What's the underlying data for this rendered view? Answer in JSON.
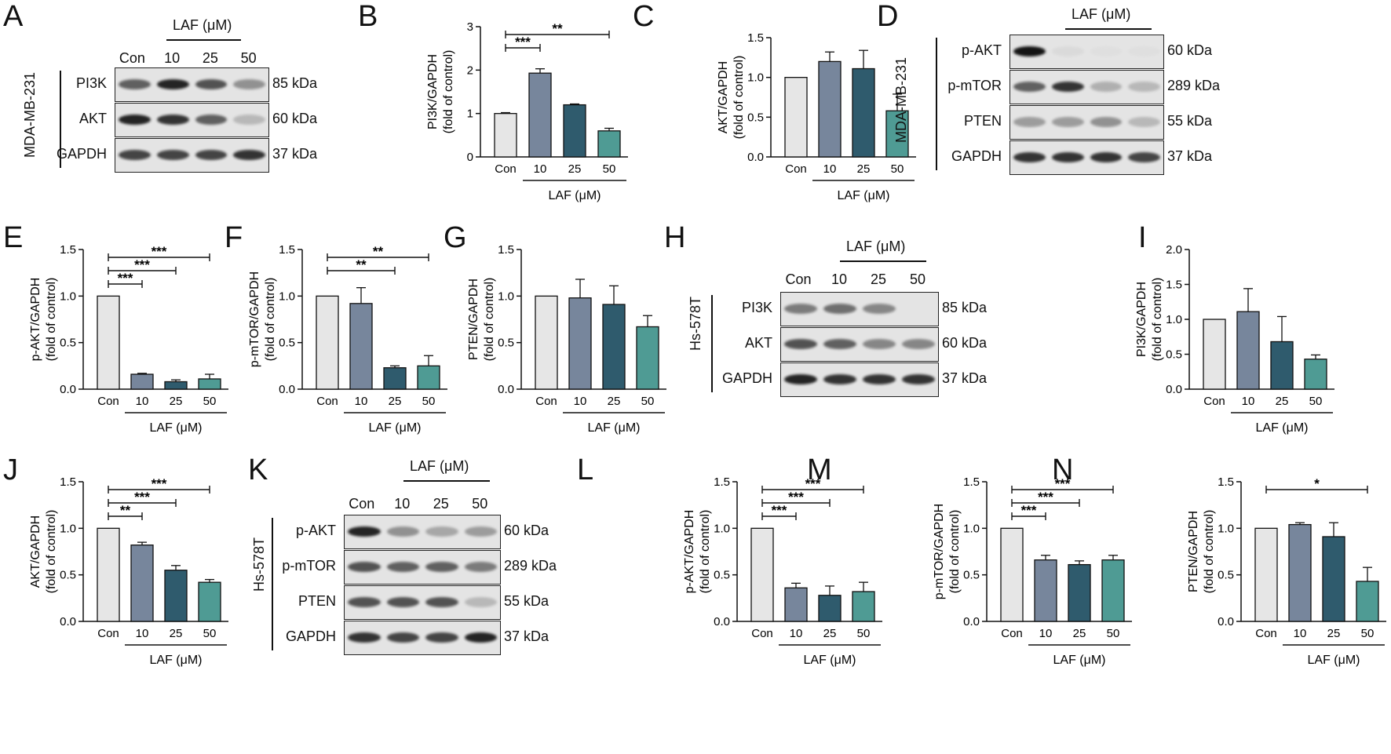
{
  "panel_letters": {
    "A": "A",
    "B": "B",
    "C": "C",
    "D": "D",
    "E": "E",
    "F": "F",
    "G": "G",
    "H": "H",
    "I": "I",
    "J": "J",
    "K": "K",
    "L": "L",
    "M": "M",
    "N": "N"
  },
  "colors": {
    "Con": "#e6e6e6",
    "10": "#77869c",
    "25": "#2f5b6d",
    "50": "#4f9b94"
  },
  "chart_data": [
    {
      "panel": "B",
      "type": "bar",
      "categories": [
        "Con",
        "10",
        "25",
        "50"
      ],
      "values": [
        1.0,
        1.93,
        1.2,
        0.6
      ],
      "errors": [
        0.02,
        0.1,
        0.02,
        0.06
      ],
      "ylabel": "PI3K/GAPDH",
      "ylabel2": "(fold of control)",
      "xlabel": "LAF (μM)",
      "ylim": [
        0,
        3
      ],
      "yticks": [
        "0",
        "1",
        "2",
        "3"
      ],
      "sig": [
        {
          "to": 1,
          "label": "***"
        },
        {
          "to": 3,
          "label": "**"
        }
      ]
    },
    {
      "panel": "C",
      "type": "bar",
      "categories": [
        "Con",
        "10",
        "25",
        "50"
      ],
      "values": [
        1.0,
        1.2,
        1.11,
        0.58
      ],
      "errors": [
        0.0,
        0.12,
        0.23,
        0.21
      ],
      "ylabel": "AKT/GAPDH",
      "ylabel2": "(fold of control)",
      "xlabel": "LAF (μM)",
      "ylim": [
        0,
        1.5
      ],
      "yticks": [
        "0.0",
        "0.5",
        "1.0",
        "1.5"
      ],
      "sig": []
    },
    {
      "panel": "E",
      "type": "bar",
      "categories": [
        "Con",
        "10",
        "25",
        "50"
      ],
      "values": [
        1.0,
        0.16,
        0.08,
        0.11
      ],
      "errors": [
        0.0,
        0.01,
        0.02,
        0.05
      ],
      "ylabel": "p-AKT/GAPDH",
      "ylabel2": "(fold of control)",
      "xlabel": "LAF (μM)",
      "ylim": [
        0,
        1.5
      ],
      "yticks": [
        "0.0",
        "0.5",
        "1.0",
        "1.5"
      ],
      "sig": [
        {
          "to": 1,
          "label": "***"
        },
        {
          "to": 2,
          "label": "***"
        },
        {
          "to": 3,
          "label": "***"
        }
      ]
    },
    {
      "panel": "F",
      "type": "bar",
      "categories": [
        "Con",
        "10",
        "25",
        "50"
      ],
      "values": [
        1.0,
        0.92,
        0.23,
        0.25
      ],
      "errors": [
        0.0,
        0.17,
        0.02,
        0.11
      ],
      "ylabel": "p-mTOR/GAPDH",
      "ylabel2": "(fold of control)",
      "xlabel": "LAF (μM)",
      "ylim": [
        0,
        1.5
      ],
      "yticks": [
        "0.0",
        "0.5",
        "1.0",
        "1.5"
      ],
      "sig": [
        {
          "to": 2,
          "label": "**"
        },
        {
          "to": 3,
          "label": "**"
        }
      ]
    },
    {
      "panel": "G",
      "type": "bar",
      "categories": [
        "Con",
        "10",
        "25",
        "50"
      ],
      "values": [
        1.0,
        0.98,
        0.91,
        0.67
      ],
      "errors": [
        0.0,
        0.2,
        0.2,
        0.12
      ],
      "ylabel": "PTEN/GAPDH",
      "ylabel2": "(fold of control)",
      "xlabel": "LAF (μM)",
      "ylim": [
        0,
        1.5
      ],
      "yticks": [
        "0.0",
        "0.5",
        "1.0",
        "1.5"
      ],
      "sig": []
    },
    {
      "panel": "I",
      "type": "bar",
      "categories": [
        "Con",
        "10",
        "25",
        "50"
      ],
      "values": [
        1.0,
        1.11,
        0.68,
        0.43
      ],
      "errors": [
        0.0,
        0.33,
        0.36,
        0.06
      ],
      "ylabel": "PI3K/GAPDH",
      "ylabel2": "(fold of control)",
      "xlabel": "LAF (μM)",
      "ylim": [
        0,
        2
      ],
      "yticks": [
        "0.0",
        "0.5",
        "1.0",
        "1.5",
        "2.0"
      ],
      "sig": []
    },
    {
      "panel": "J",
      "type": "bar",
      "categories": [
        "Con",
        "10",
        "25",
        "50"
      ],
      "values": [
        1.0,
        0.82,
        0.55,
        0.42
      ],
      "errors": [
        0.0,
        0.03,
        0.05,
        0.03
      ],
      "ylabel": "AKT/GAPDH",
      "ylabel2": "(fold of control)",
      "xlabel": "LAF (μM)",
      "ylim": [
        0,
        1.5
      ],
      "yticks": [
        "0.0",
        "0.5",
        "1.0",
        "1.5"
      ],
      "sig": [
        {
          "to": 1,
          "label": "**"
        },
        {
          "to": 2,
          "label": "***"
        },
        {
          "to": 3,
          "label": "***"
        }
      ]
    },
    {
      "panel": "L",
      "type": "bar",
      "categories": [
        "Con",
        "10",
        "25",
        "50"
      ],
      "values": [
        1.0,
        0.36,
        0.28,
        0.32
      ],
      "errors": [
        0.0,
        0.05,
        0.1,
        0.1
      ],
      "ylabel": "p-AKT/GAPDH",
      "ylabel2": "(fold of control)",
      "xlabel": "LAF (μM)",
      "ylim": [
        0,
        1.5
      ],
      "yticks": [
        "0.0",
        "0.5",
        "1.0",
        "1.5"
      ],
      "sig": [
        {
          "to": 1,
          "label": "***"
        },
        {
          "to": 2,
          "label": "***"
        },
        {
          "to": 3,
          "label": "***"
        }
      ]
    },
    {
      "panel": "M",
      "type": "bar",
      "categories": [
        "Con",
        "10",
        "25",
        "50"
      ],
      "values": [
        1.0,
        0.66,
        0.61,
        0.66
      ],
      "errors": [
        0.0,
        0.05,
        0.04,
        0.05
      ],
      "ylabel": "p-mTOR/GAPDH",
      "ylabel2": "(fold of control)",
      "xlabel": "LAF (μM)",
      "ylim": [
        0,
        1.5
      ],
      "yticks": [
        "0.0",
        "0.5",
        "1.0",
        "1.5"
      ],
      "sig": [
        {
          "to": 1,
          "label": "***"
        },
        {
          "to": 2,
          "label": "***"
        },
        {
          "to": 3,
          "label": "***"
        }
      ]
    },
    {
      "panel": "N",
      "type": "bar",
      "categories": [
        "Con",
        "10",
        "25",
        "50"
      ],
      "values": [
        1.0,
        1.04,
        0.91,
        0.43
      ],
      "errors": [
        0.0,
        0.02,
        0.15,
        0.15
      ],
      "ylabel": "PTEN/GAPDH",
      "ylabel2": "(fold of control)",
      "xlabel": "LAF (μM)",
      "ylim": [
        0,
        1.5
      ],
      "yticks": [
        "0.0",
        "0.5",
        "1.0",
        "1.5"
      ],
      "sig": [
        {
          "to": 3,
          "label": "*"
        }
      ]
    }
  ],
  "blots": {
    "A": {
      "cell_line": "MDA-MB-231",
      "laf_label": "LAF (μM)",
      "columns": [
        "Con",
        "10",
        "25",
        "50"
      ],
      "rows": [
        {
          "label": "PI3K",
          "kda": "85 kDa",
          "intensity": [
            0.75,
            0.95,
            0.8,
            0.55
          ]
        },
        {
          "label": "AKT",
          "kda": "60 kDa",
          "intensity": [
            0.95,
            0.9,
            0.75,
            0.35
          ]
        },
        {
          "label": "GAPDH",
          "kda": "37 kDa",
          "intensity": [
            0.85,
            0.85,
            0.85,
            0.9
          ]
        }
      ]
    },
    "D": {
      "cell_line": "MDA-MB-231",
      "laf_label": "LAF (μM)",
      "columns": [
        "Con",
        "10",
        "25",
        "50"
      ],
      "rows": [
        {
          "label": "p-AKT",
          "kda": "60 kDa",
          "intensity": [
            1.0,
            0.1,
            0.05,
            0.05
          ]
        },
        {
          "label": "p-mTOR",
          "kda": "289 kDa",
          "intensity": [
            0.75,
            0.9,
            0.4,
            0.35
          ]
        },
        {
          "label": "PTEN",
          "kda": "55 kDa",
          "intensity": [
            0.5,
            0.5,
            0.55,
            0.35
          ]
        },
        {
          "label": "GAPDH",
          "kda": "37 kDa",
          "intensity": [
            0.9,
            0.9,
            0.9,
            0.85
          ]
        }
      ]
    },
    "H": {
      "cell_line": "Hs-578T",
      "laf_label": "LAF (μM)",
      "columns": [
        "Con",
        "10",
        "25",
        "50"
      ],
      "rows": [
        {
          "label": "PI3K",
          "kda": "85 kDa",
          "intensity": [
            0.65,
            0.7,
            0.6,
            0.0
          ]
        },
        {
          "label": "AKT",
          "kda": "60 kDa",
          "intensity": [
            0.8,
            0.75,
            0.6,
            0.6
          ]
        },
        {
          "label": "GAPDH",
          "kda": "37 kDa",
          "intensity": [
            0.95,
            0.9,
            0.9,
            0.9
          ]
        }
      ]
    },
    "K": {
      "cell_line": "Hs-578T",
      "laf_label": "LAF (μM)",
      "columns": [
        "Con",
        "10",
        "25",
        "50"
      ],
      "rows": [
        {
          "label": "p-AKT",
          "kda": "60 kDa",
          "intensity": [
            0.95,
            0.55,
            0.45,
            0.5
          ]
        },
        {
          "label": "p-mTOR",
          "kda": "289 kDa",
          "intensity": [
            0.8,
            0.75,
            0.75,
            0.65
          ]
        },
        {
          "label": "PTEN",
          "kda": "55 kDa",
          "intensity": [
            0.8,
            0.8,
            0.8,
            0.35
          ]
        },
        {
          "label": "GAPDH",
          "kda": "37 kDa",
          "intensity": [
            0.9,
            0.85,
            0.85,
            0.95
          ]
        }
      ]
    }
  }
}
